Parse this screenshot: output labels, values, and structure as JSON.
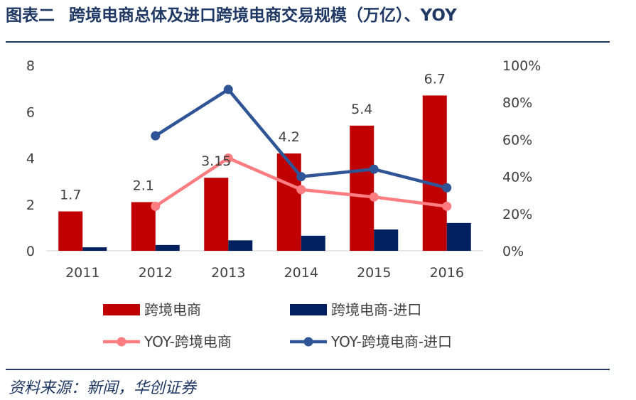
{
  "header": {
    "figure_label": "图表二",
    "title": "跨境电商总体及进口跨境电商交易规模（万亿）、YOY"
  },
  "footer": {
    "source": "资料来源：新闻，华创证券"
  },
  "colors": {
    "bar_total": "#c00000",
    "bar_import": "#002060",
    "line_total": "#ff7c80",
    "line_import": "#2f5597",
    "axis": "#d9d9d9"
  },
  "chart_data": {
    "type": "bar",
    "categories": [
      "2011",
      "2012",
      "2013",
      "2014",
      "2015",
      "2016"
    ],
    "y_left": {
      "ylim": [
        0,
        8
      ],
      "ticks": [
        "0",
        "2",
        "4",
        "6",
        "8"
      ]
    },
    "y_right": {
      "ylim": [
        0,
        100
      ],
      "ticks": [
        "0%",
        "20%",
        "40%",
        "60%",
        "80%",
        "100%"
      ]
    },
    "bar_series": [
      {
        "name": "跨境电商",
        "values": [
          1.7,
          2.1,
          3.15,
          4.2,
          5.4,
          6.7
        ],
        "labels": [
          "1.7",
          "2.1",
          "3.15",
          "4.2",
          "5.4",
          "6.7"
        ]
      },
      {
        "name": "跨境电商-进口",
        "values": [
          0.15,
          0.25,
          0.45,
          0.65,
          0.92,
          1.2
        ]
      }
    ],
    "line_series": [
      {
        "name": "YOY-跨境电商",
        "values": [
          null,
          24,
          50,
          33,
          29,
          24
        ]
      },
      {
        "name": "YOY-跨境电商-进口",
        "values": [
          null,
          62,
          87,
          40,
          44,
          34
        ]
      }
    ],
    "legend_position": "bottom"
  }
}
